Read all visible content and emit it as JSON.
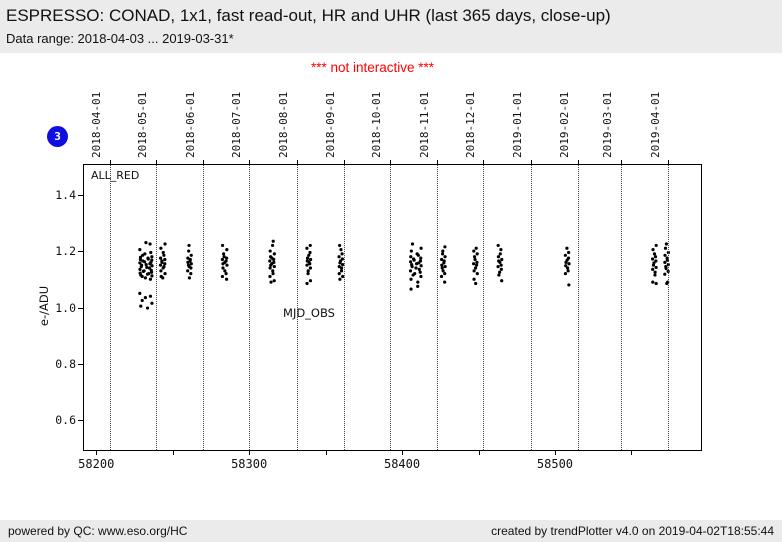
{
  "header": {
    "title": "ESPRESSO: CONAD, 1x1, fast read-out, HR and UHR (last 365 days, close-up)",
    "subtitle": "Data range: 2018-04-03 ... 2019-03-31*"
  },
  "notice": "*** not interactive ***",
  "badge": {
    "label": "3",
    "color": "#0f0fe0"
  },
  "footer": {
    "left": "powered by QC: www.eso.org/HC",
    "right": "created by trendPlotter v4.0 on 2019-04-02T18:55:44"
  },
  "chart_data": {
    "type": "scatter",
    "series_label": "ALL_RED",
    "xlabel": "MJD_OBS",
    "ylabel": "e-/ADU",
    "xlim": [
      58192,
      58595.5
    ],
    "ylim": [
      0.495,
      1.505
    ],
    "x_ticks_major": [
      58200,
      58300,
      58400,
      58500
    ],
    "x_ticks_minor": [
      58250,
      58350,
      58450,
      58550
    ],
    "y_ticks": [
      0.6,
      0.8,
      1.0,
      1.2,
      1.4
    ],
    "grid": "vertical-dotted-at-month-starts",
    "legend_position": "inside-top-left",
    "marker": {
      "shape": "dot",
      "color": "#000000",
      "radius_px": 1.6
    },
    "top_axis_dates": [
      {
        "mjd": 58209,
        "label": "2018-04-01"
      },
      {
        "mjd": 58239,
        "label": "2018-05-01"
      },
      {
        "mjd": 58270,
        "label": "2018-06-01"
      },
      {
        "mjd": 58300,
        "label": "2018-07-01"
      },
      {
        "mjd": 58331,
        "label": "2018-08-01"
      },
      {
        "mjd": 58362,
        "label": "2018-09-01"
      },
      {
        "mjd": 58392,
        "label": "2018-10-01"
      },
      {
        "mjd": 58423,
        "label": "2018-11-01"
      },
      {
        "mjd": 58453,
        "label": "2018-12-01"
      },
      {
        "mjd": 58484,
        "label": "2019-01-01"
      },
      {
        "mjd": 58515,
        "label": "2019-02-01"
      },
      {
        "mjd": 58543,
        "label": "2019-03-01"
      },
      {
        "mjd": 58574,
        "label": "2019-04-01"
      }
    ],
    "clusters": [
      {
        "mjd": 58232.5,
        "xspread": 4.0,
        "values": [
          1.23,
          1.225,
          1.205,
          1.195,
          1.19,
          1.185,
          1.18,
          1.178,
          1.175,
          1.172,
          1.17,
          1.168,
          1.165,
          1.162,
          1.16,
          1.158,
          1.155,
          1.152,
          1.15,
          1.148,
          1.145,
          1.142,
          1.14,
          1.135,
          1.132,
          1.13,
          1.128,
          1.125,
          1.122,
          1.12,
          1.118,
          1.115,
          1.112,
          1.11,
          1.105,
          1.1,
          1.05,
          1.04,
          1.035,
          1.025,
          1.015,
          1.005,
          0.998
        ]
      },
      {
        "mjd": 58243.5,
        "xspread": 1.5,
        "values": [
          1.225,
          1.21,
          1.195,
          1.185,
          1.175,
          1.17,
          1.165,
          1.16,
          1.155,
          1.15,
          1.145,
          1.14,
          1.13,
          1.12,
          1.11,
          1.105
        ]
      },
      {
        "mjd": 58261,
        "xspread": 1.2,
        "values": [
          1.22,
          1.2,
          1.185,
          1.175,
          1.17,
          1.165,
          1.16,
          1.155,
          1.15,
          1.145,
          1.14,
          1.13,
          1.12,
          1.105
        ]
      },
      {
        "mjd": 58284,
        "xspread": 1.5,
        "values": [
          1.22,
          1.205,
          1.19,
          1.18,
          1.175,
          1.17,
          1.165,
          1.16,
          1.155,
          1.15,
          1.14,
          1.13,
          1.12,
          1.11,
          1.1
        ]
      },
      {
        "mjd": 58315,
        "xspread": 1.5,
        "values": [
          1.235,
          1.22,
          1.2,
          1.19,
          1.18,
          1.175,
          1.17,
          1.165,
          1.16,
          1.155,
          1.15,
          1.145,
          1.14,
          1.13,
          1.12,
          1.11,
          1.095,
          1.09
        ]
      },
      {
        "mjd": 58339,
        "xspread": 1.2,
        "values": [
          1.22,
          1.21,
          1.195,
          1.185,
          1.175,
          1.17,
          1.165,
          1.16,
          1.155,
          1.15,
          1.14,
          1.13,
          1.12,
          1.095,
          1.085
        ]
      },
      {
        "mjd": 58360,
        "xspread": 1.2,
        "values": [
          1.22,
          1.205,
          1.19,
          1.18,
          1.172,
          1.165,
          1.158,
          1.152,
          1.145,
          1.14,
          1.13,
          1.12,
          1.11,
          1.1
        ]
      },
      {
        "mjd": 58409,
        "xspread": 3.5,
        "values": [
          1.225,
          1.21,
          1.2,
          1.19,
          1.185,
          1.18,
          1.175,
          1.172,
          1.168,
          1.165,
          1.162,
          1.158,
          1.155,
          1.152,
          1.148,
          1.145,
          1.14,
          1.135,
          1.13,
          1.125,
          1.12,
          1.115,
          1.11,
          1.1,
          1.09,
          1.075,
          1.065
        ]
      },
      {
        "mjd": 58427,
        "xspread": 1.2,
        "values": [
          1.215,
          1.2,
          1.19,
          1.18,
          1.17,
          1.165,
          1.158,
          1.15,
          1.145,
          1.14,
          1.13,
          1.12,
          1.11,
          1.09
        ]
      },
      {
        "mjd": 58448,
        "xspread": 1.2,
        "values": [
          1.21,
          1.2,
          1.19,
          1.18,
          1.17,
          1.16,
          1.155,
          1.15,
          1.14,
          1.13,
          1.12,
          1.1,
          1.085
        ]
      },
      {
        "mjd": 58464,
        "xspread": 1.2,
        "values": [
          1.22,
          1.205,
          1.19,
          1.18,
          1.17,
          1.165,
          1.16,
          1.15,
          1.145,
          1.135,
          1.125,
          1.115,
          1.095
        ]
      },
      {
        "mjd": 58508,
        "xspread": 1.2,
        "values": [
          1.21,
          1.195,
          1.185,
          1.175,
          1.168,
          1.16,
          1.155,
          1.148,
          1.14,
          1.13,
          1.12,
          1.08
        ]
      },
      {
        "mjd": 58565,
        "xspread": 1.2,
        "values": [
          1.22,
          1.205,
          1.19,
          1.18,
          1.172,
          1.165,
          1.158,
          1.15,
          1.142,
          1.135,
          1.125,
          1.115,
          1.09,
          1.085
        ]
      },
      {
        "mjd": 58573,
        "xspread": 1.2,
        "values": [
          1.225,
          1.21,
          1.195,
          1.185,
          1.175,
          1.168,
          1.16,
          1.152,
          1.145,
          1.138,
          1.128,
          1.118,
          1.09,
          1.085
        ]
      }
    ]
  }
}
